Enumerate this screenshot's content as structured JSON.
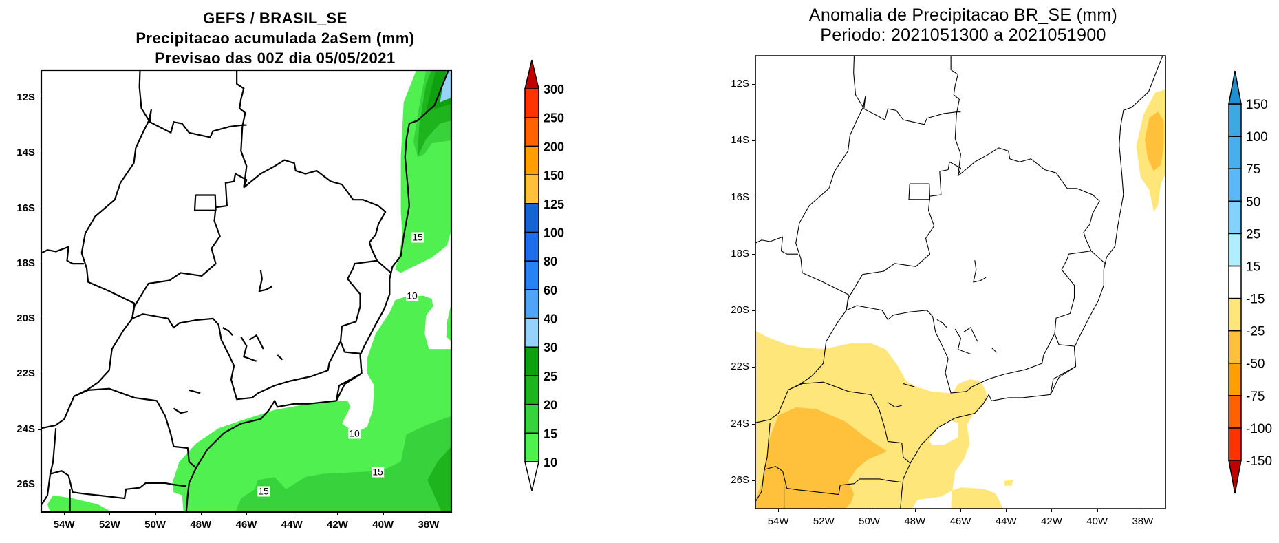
{
  "left_panel": {
    "title_lines": [
      "GEFS / BRASIL_SE",
      "Precipitacao acumulada 2aSem (mm)",
      "Previsao das 00Z dia 05/05/2021"
    ],
    "lat_labels": [
      "12S",
      "14S",
      "16S",
      "18S",
      "20S",
      "22S",
      "24S",
      "26S"
    ],
    "lon_labels": [
      "54W",
      "52W",
      "50W",
      "48W",
      "46W",
      "44W",
      "42W",
      "40W",
      "38W"
    ],
    "contour_labels": [
      "15",
      "10",
      "10",
      "15",
      "15"
    ],
    "colorbar": {
      "levels": [
        "10",
        "15",
        "20",
        "25",
        "30",
        "40",
        "60",
        "80",
        "100",
        "125",
        "150",
        "200",
        "250",
        "300"
      ],
      "colors": [
        "#50f050",
        "#37d23c",
        "#1eb41e",
        "#0fa00f",
        "#96d2fa",
        "#50a5f5",
        "#2882f0",
        "#1e6eeb",
        "#1464d2",
        "#ffc03c",
        "#ffa000",
        "#ff6400",
        "#ff3200"
      ],
      "under_color": "#ffffff",
      "over_color": "#c00000"
    }
  },
  "right_panel": {
    "title_lines": [
      "Anomalia de Precipitacao BR_SE (mm)",
      "Periodo: 2021051300 a 2021051900"
    ],
    "lat_labels": [
      "12S",
      "14S",
      "16S",
      "18S",
      "20S",
      "22S",
      "24S",
      "26S"
    ],
    "lon_labels": [
      "54W",
      "52W",
      "50W",
      "48W",
      "46W",
      "44W",
      "42W",
      "40W",
      "38W"
    ],
    "colorbar": {
      "levels": [
        "-150",
        "-100",
        "-75",
        "-50",
        "-25",
        "-15",
        "15",
        "25",
        "50",
        "75",
        "100",
        "150"
      ],
      "colors": [
        "#ff3200",
        "#ff6000",
        "#ffa000",
        "#ffc03c",
        "#ffe67a",
        "#ffffff",
        "#afeefd",
        "#82d2ff",
        "#5ab9fa",
        "#46aff0",
        "#3ca8e6"
      ],
      "under_color": "#c00000",
      "over_color": "#1f8fd0"
    }
  }
}
